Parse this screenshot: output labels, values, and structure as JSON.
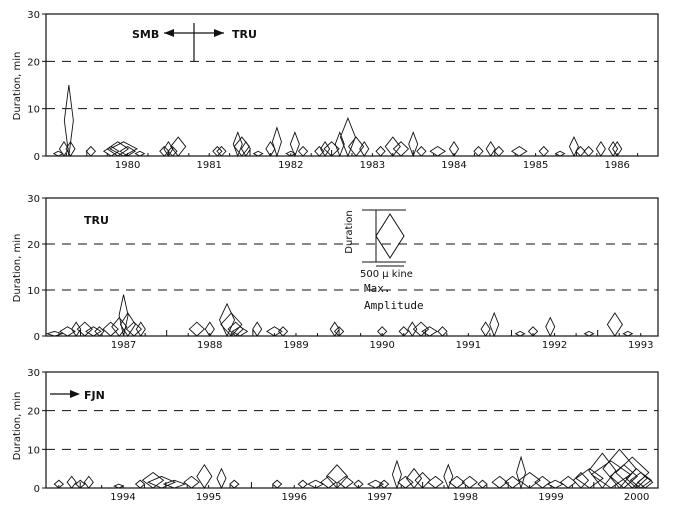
{
  "chart_data": [
    {
      "type": "scatter",
      "marker": "diamond",
      "station_label": "SMB",
      "station_label_2": "TRU",
      "ylabel": "Duration, min",
      "ylim": [
        0,
        30
      ],
      "yticks": [
        0,
        10,
        20,
        30
      ],
      "xlim": [
        1979.5,
        1987.0
      ],
      "xticks": [
        "1980",
        "1981",
        "1982",
        "1983",
        "1984",
        "1985",
        "1986"
      ],
      "dashed_gridlines_y": [
        10,
        20
      ],
      "series": [
        {
          "points": [
            {
              "t": 1979.65,
              "d": 1,
              "a": 1
            },
            {
              "t": 1979.72,
              "d": 3,
              "a": 1
            },
            {
              "t": 1979.78,
              "d": 15,
              "a": 1
            },
            {
              "t": 1979.8,
              "d": 3,
              "a": 1
            },
            {
              "t": 1980.05,
              "d": 2,
              "a": 1
            },
            {
              "t": 1980.3,
              "d": 2,
              "a": 2
            },
            {
              "t": 1980.38,
              "d": 3,
              "a": 3
            },
            {
              "t": 1980.45,
              "d": 3,
              "a": 4
            },
            {
              "t": 1980.5,
              "d": 2,
              "a": 2
            },
            {
              "t": 1980.65,
              "d": 1,
              "a": 1
            },
            {
              "t": 1980.95,
              "d": 2,
              "a": 1
            },
            {
              "t": 1981.0,
              "d": 3,
              "a": 1
            },
            {
              "t": 1981.05,
              "d": 2,
              "a": 1
            },
            {
              "t": 1981.12,
              "d": 4,
              "a": 2
            },
            {
              "t": 1981.6,
              "d": 2,
              "a": 1
            },
            {
              "t": 1981.65,
              "d": 2,
              "a": 1
            },
            {
              "t": 1981.85,
              "d": 5,
              "a": 1
            },
            {
              "t": 1981.9,
              "d": 4,
              "a": 2
            },
            {
              "t": 1981.95,
              "d": 3,
              "a": 1
            },
            {
              "t": 1982.1,
              "d": 1,
              "a": 1
            },
            {
              "t": 1982.25,
              "d": 3,
              "a": 1
            },
            {
              "t": 1982.33,
              "d": 6,
              "a": 1
            },
            {
              "t": 1982.5,
              "d": 1,
              "a": 1
            },
            {
              "t": 1982.55,
              "d": 5,
              "a": 1
            },
            {
              "t": 1982.65,
              "d": 2,
              "a": 1
            },
            {
              "t": 1982.85,
              "d": 2,
              "a": 1
            },
            {
              "t": 1982.92,
              "d": 3,
              "a": 1
            },
            {
              "t": 1983.0,
              "d": 3,
              "a": 2
            },
            {
              "t": 1983.1,
              "d": 5,
              "a": 1
            },
            {
              "t": 1983.2,
              "d": 8,
              "a": 2
            },
            {
              "t": 1983.3,
              "d": 4,
              "a": 2
            },
            {
              "t": 1983.4,
              "d": 3,
              "a": 1
            },
            {
              "t": 1983.6,
              "d": 2,
              "a": 1
            },
            {
              "t": 1983.75,
              "d": 4,
              "a": 2
            },
            {
              "t": 1983.85,
              "d": 3,
              "a": 2
            },
            {
              "t": 1984.0,
              "d": 5,
              "a": 1
            },
            {
              "t": 1984.1,
              "d": 2,
              "a": 1
            },
            {
              "t": 1984.3,
              "d": 2,
              "a": 2
            },
            {
              "t": 1984.5,
              "d": 3,
              "a": 1
            },
            {
              "t": 1984.8,
              "d": 2,
              "a": 1
            },
            {
              "t": 1984.95,
              "d": 3,
              "a": 1
            },
            {
              "t": 1985.05,
              "d": 2,
              "a": 1
            },
            {
              "t": 1985.3,
              "d": 2,
              "a": 2
            },
            {
              "t": 1985.6,
              "d": 2,
              "a": 1
            },
            {
              "t": 1985.8,
              "d": 1,
              "a": 1
            },
            {
              "t": 1985.97,
              "d": 4,
              "a": 1
            },
            {
              "t": 1986.05,
              "d": 2,
              "a": 1
            },
            {
              "t": 1986.15,
              "d": 2,
              "a": 1
            },
            {
              "t": 1986.3,
              "d": 3,
              "a": 1
            },
            {
              "t": 1986.45,
              "d": 3,
              "a": 1
            },
            {
              "t": 1986.5,
              "d": 3,
              "a": 1
            }
          ]
        }
      ]
    },
    {
      "type": "scatter",
      "marker": "diamond",
      "station_label": "TRU",
      "ylabel": "Duration, min",
      "ylim": [
        0,
        30
      ],
      "yticks": [
        0,
        10,
        20,
        30
      ],
      "xlim": [
        1986.6,
        1993.7
      ],
      "xticks": [
        "1987",
        "1988",
        "1989",
        "1990",
        "1991",
        "1992",
        "1993"
      ],
      "dashed_gridlines_y": [
        10,
        20
      ],
      "legend": {
        "label": "Duration",
        "amplitude_label": "500 μ kine",
        "amplitude_text_1": "Max.",
        "amplitude_text_2": "Amplitude"
      },
      "series": [
        {
          "points": [
            {
              "t": 1986.7,
              "d": 1,
              "a": 2
            },
            {
              "t": 1986.85,
              "d": 2,
              "a": 2
            },
            {
              "t": 1986.95,
              "d": 3,
              "a": 1
            },
            {
              "t": 1987.05,
              "d": 3,
              "a": 2
            },
            {
              "t": 1987.15,
              "d": 2,
              "a": 2
            },
            {
              "t": 1987.22,
              "d": 2,
              "a": 1
            },
            {
              "t": 1987.35,
              "d": 3,
              "a": 2
            },
            {
              "t": 1987.45,
              "d": 4,
              "a": 2
            },
            {
              "t": 1987.5,
              "d": 9,
              "a": 1
            },
            {
              "t": 1987.55,
              "d": 5,
              "a": 2
            },
            {
              "t": 1987.62,
              "d": 3,
              "a": 2
            },
            {
              "t": 1987.7,
              "d": 3,
              "a": 1
            },
            {
              "t": 1988.35,
              "d": 3,
              "a": 2
            },
            {
              "t": 1988.5,
              "d": 3,
              "a": 1
            },
            {
              "t": 1988.7,
              "d": 7,
              "a": 2
            },
            {
              "t": 1988.75,
              "d": 5,
              "a": 3
            },
            {
              "t": 1988.8,
              "d": 3,
              "a": 2
            },
            {
              "t": 1988.85,
              "d": 2,
              "a": 2
            },
            {
              "t": 1989.05,
              "d": 3,
              "a": 1
            },
            {
              "t": 1989.25,
              "d": 2,
              "a": 2
            },
            {
              "t": 1989.35,
              "d": 2,
              "a": 1
            },
            {
              "t": 1989.95,
              "d": 3,
              "a": 1
            },
            {
              "t": 1990.0,
              "d": 2,
              "a": 1
            },
            {
              "t": 1990.5,
              "d": 2,
              "a": 1
            },
            {
              "t": 1990.75,
              "d": 2,
              "a": 1
            },
            {
              "t": 1990.85,
              "d": 3,
              "a": 1
            },
            {
              "t": 1990.95,
              "d": 3,
              "a": 2
            },
            {
              "t": 1991.05,
              "d": 2,
              "a": 2
            },
            {
              "t": 1991.2,
              "d": 2,
              "a": 1
            },
            {
              "t": 1991.7,
              "d": 3,
              "a": 1
            },
            {
              "t": 1991.8,
              "d": 5,
              "a": 1
            },
            {
              "t": 1992.1,
              "d": 1,
              "a": 1
            },
            {
              "t": 1992.25,
              "d": 2,
              "a": 1
            },
            {
              "t": 1992.45,
              "d": 4,
              "a": 1
            },
            {
              "t": 1992.9,
              "d": 1,
              "a": 1
            },
            {
              "t": 1993.2,
              "d": 5,
              "a": 2
            },
            {
              "t": 1993.35,
              "d": 1,
              "a": 1
            }
          ]
        }
      ]
    },
    {
      "type": "scatter",
      "marker": "diamond",
      "station_label": "FJN",
      "ylabel": "Duration, min",
      "ylim": [
        0,
        30
      ],
      "yticks": [
        0,
        10,
        20,
        30
      ],
      "xlim": [
        1993.6,
        2000.75
      ],
      "xticks": [
        "1994",
        "1995",
        "1996",
        "1997",
        "1998",
        "1999",
        "2000"
      ],
      "dashed_gridlines_y": [
        10,
        20
      ],
      "series": [
        {
          "points": [
            {
              "t": 1993.75,
              "d": 2,
              "a": 1
            },
            {
              "t": 1993.9,
              "d": 3,
              "a": 1
            },
            {
              "t": 1994.0,
              "d": 2,
              "a": 1
            },
            {
              "t": 1994.1,
              "d": 3,
              "a": 1
            },
            {
              "t": 1994.45,
              "d": 1,
              "a": 1
            },
            {
              "t": 1994.7,
              "d": 2,
              "a": 1
            },
            {
              "t": 1994.85,
              "d": 4,
              "a": 3
            },
            {
              "t": 1994.95,
              "d": 3,
              "a": 4
            },
            {
              "t": 1995.1,
              "d": 2,
              "a": 3
            },
            {
              "t": 1995.3,
              "d": 3,
              "a": 2
            },
            {
              "t": 1995.45,
              "d": 6,
              "a": 2
            },
            {
              "t": 1995.65,
              "d": 5,
              "a": 1
            },
            {
              "t": 1995.8,
              "d": 2,
              "a": 1
            },
            {
              "t": 1996.3,
              "d": 2,
              "a": 1
            },
            {
              "t": 1996.6,
              "d": 2,
              "a": 1
            },
            {
              "t": 1996.75,
              "d": 2,
              "a": 2
            },
            {
              "t": 1996.9,
              "d": 3,
              "a": 2
            },
            {
              "t": 1997.0,
              "d": 6,
              "a": 3
            },
            {
              "t": 1997.1,
              "d": 3,
              "a": 2
            },
            {
              "t": 1997.25,
              "d": 2,
              "a": 1
            },
            {
              "t": 1997.45,
              "d": 2,
              "a": 2
            },
            {
              "t": 1997.55,
              "d": 2,
              "a": 1
            },
            {
              "t": 1997.7,
              "d": 7,
              "a": 1
            },
            {
              "t": 1997.8,
              "d": 3,
              "a": 2
            },
            {
              "t": 1997.9,
              "d": 5,
              "a": 2
            },
            {
              "t": 1998.0,
              "d": 4,
              "a": 2
            },
            {
              "t": 1998.15,
              "d": 3,
              "a": 2
            },
            {
              "t": 1998.3,
              "d": 6,
              "a": 1
            },
            {
              "t": 1998.4,
              "d": 3,
              "a": 2
            },
            {
              "t": 1998.55,
              "d": 3,
              "a": 2
            },
            {
              "t": 1998.7,
              "d": 2,
              "a": 1
            },
            {
              "t": 1998.9,
              "d": 3,
              "a": 2
            },
            {
              "t": 1999.05,
              "d": 3,
              "a": 2
            },
            {
              "t": 1999.15,
              "d": 8,
              "a": 1
            },
            {
              "t": 1999.25,
              "d": 4,
              "a": 3
            },
            {
              "t": 1999.4,
              "d": 3,
              "a": 2
            },
            {
              "t": 1999.55,
              "d": 2,
              "a": 2
            },
            {
              "t": 1999.7,
              "d": 3,
              "a": 2
            },
            {
              "t": 1999.85,
              "d": 4,
              "a": 2
            },
            {
              "t": 1999.95,
              "d": 5,
              "a": 4
            },
            {
              "t": 2000.1,
              "d": 9,
              "a": 4
            },
            {
              "t": 2000.2,
              "d": 7,
              "a": 6
            },
            {
              "t": 2000.3,
              "d": 10,
              "a": 5
            },
            {
              "t": 2000.35,
              "d": 6,
              "a": 4
            },
            {
              "t": 2000.45,
              "d": 8,
              "a": 5
            },
            {
              "t": 2000.5,
              "d": 5,
              "a": 3
            },
            {
              "t": 2000.55,
              "d": 4,
              "a": 3
            },
            {
              "t": 2000.6,
              "d": 3,
              "a": 2
            }
          ]
        }
      ]
    }
  ]
}
